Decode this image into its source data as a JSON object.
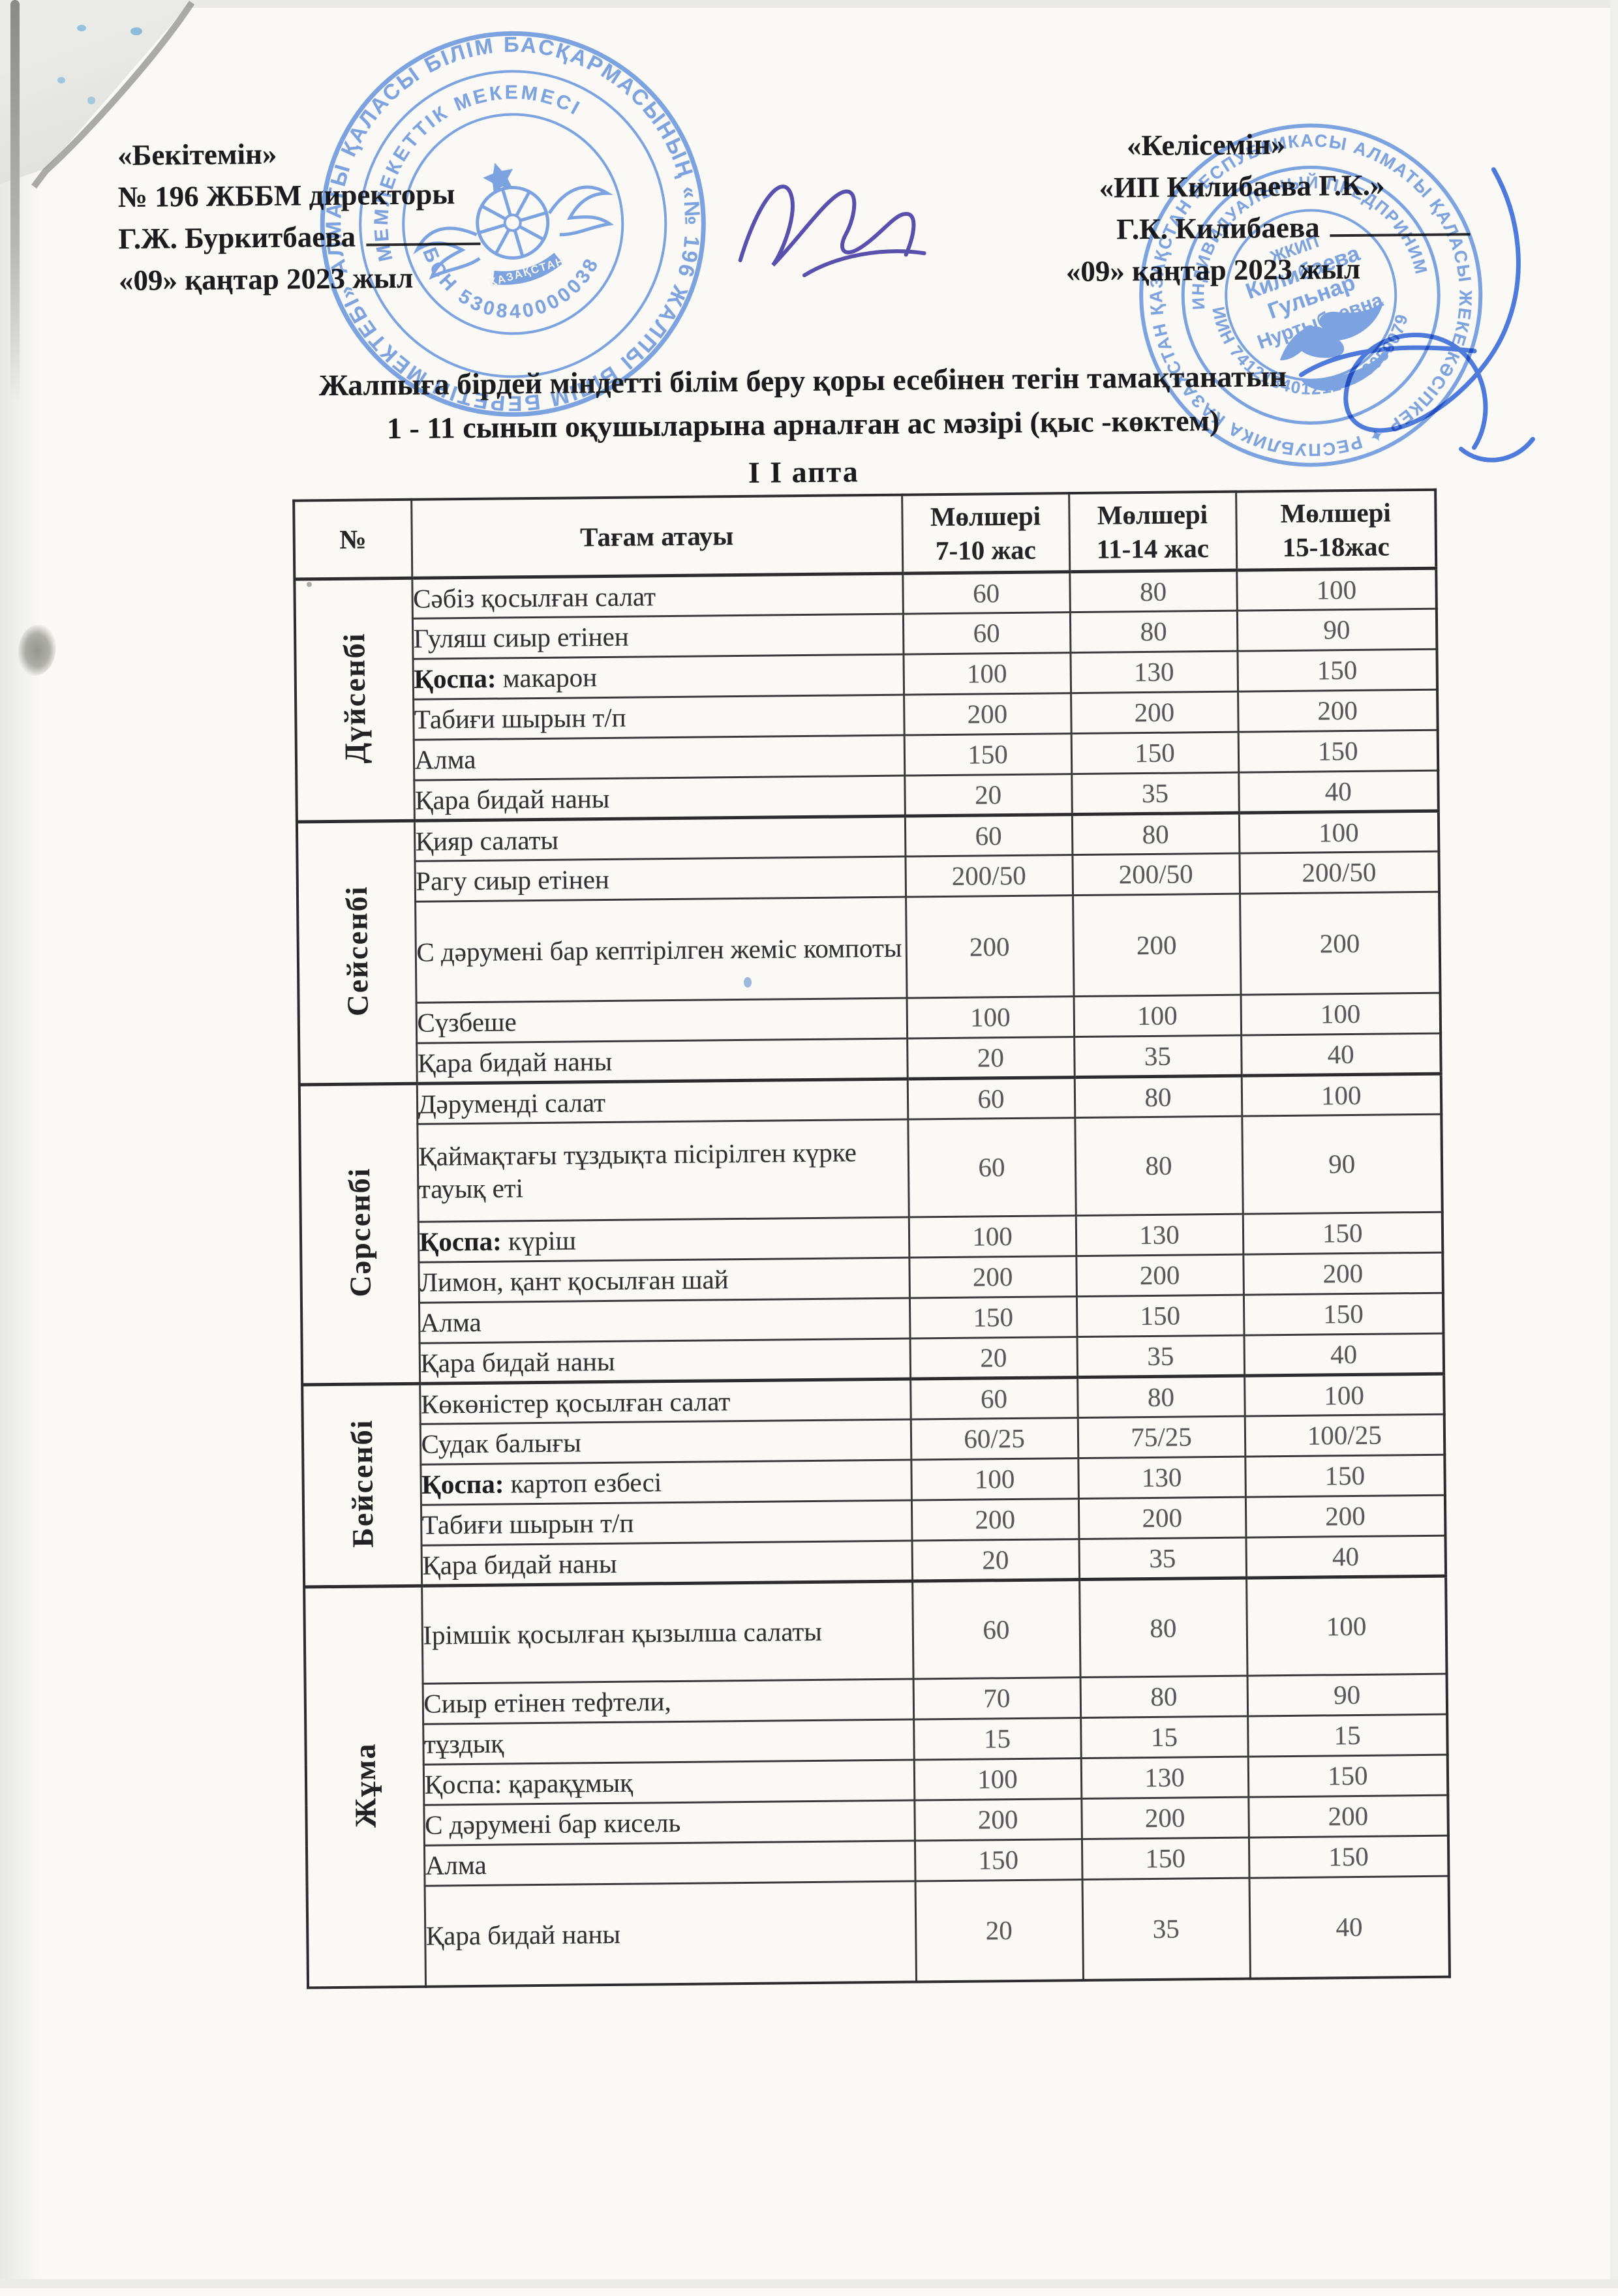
{
  "header_left": {
    "l1": "«Бекітемін»",
    "l2": "№ 196 ЖББМ  директоры",
    "l3_name": "Г.Ж. Буркитбаева",
    "l4": "«09» қаңтар 2023 жыл"
  },
  "header_right": {
    "l1": "«Келісемін»",
    "l2": "«ИП Килибаева Г.К.»",
    "l3_name": "Г.К. Килибаева",
    "l4": "«09» қаңтар  2023 жыл"
  },
  "title": {
    "line1": "Жалпыға бірдей міндетті білім беру қоры  есебінен тегін тамақтанатын",
    "line2": "1 - 11 сынып оқушыларына арналған ас мәзірі (қыс -көктем)",
    "line3": "I I апта"
  },
  "table": {
    "headers": {
      "num": "№",
      "dish": "Тағам атауы",
      "cols": [
        {
          "l1": "Мөлшері",
          "l2": "7-10 жас"
        },
        {
          "l1": "Мөлшері",
          "l2": "11-14 жас"
        },
        {
          "l1": "Мөлшері",
          "l2": "15-18жас"
        }
      ]
    },
    "days": [
      {
        "name": "Дүйсенбі",
        "rows": [
          {
            "dish": "Сәбіз қосылған салат",
            "v1": "60",
            "v2": "80",
            "v3": "100"
          },
          {
            "dish": "Гуляш сиыр етінен",
            "v1": "60",
            "v2": "80",
            "v3": "90"
          },
          {
            "bold": "Қоспа:",
            "dish": "макарон",
            "v1": "100",
            "v2": "130",
            "v3": "150"
          },
          {
            "dish": "Табиғи шырын т/п",
            "v1": "200",
            "v2": "200",
            "v3": "200"
          },
          {
            "dish": "Алма",
            "v1": "150",
            "v2": "150",
            "v3": "150"
          },
          {
            "dish": "Қара бидай наны",
            "v1": "20",
            "v2": "35",
            "v3": "40"
          }
        ]
      },
      {
        "name": "Сейсенбі",
        "rows": [
          {
            "dish": "Қияр салаты",
            "v1": "60",
            "v2": "80",
            "v3": "100"
          },
          {
            "dish": "Рагу сиыр етінен",
            "v1": "200/50",
            "v2": "200/50",
            "v3": "200/50"
          },
          {
            "dish": "С дәрумені бар кептірілген жеміс компоты",
            "v1": "200",
            "v2": "200",
            "v3": "200",
            "h": 155
          },
          {
            "dish": "Сүзбеше",
            "v1": "100",
            "v2": "100",
            "v3": "100"
          },
          {
            "dish": "Қара бидай наны",
            "v1": "20",
            "v2": "35",
            "v3": "40"
          }
        ]
      },
      {
        "name": "Сәрсенбі",
        "rows": [
          {
            "dish": "Дәруменді салат",
            "v1": "60",
            "v2": "80",
            "v3": "100"
          },
          {
            "dish": "Қаймақтағы тұздықта пісірілген күрке тауық еті",
            "v1": "60",
            "v2": "80",
            "v3": "90",
            "h": 150
          },
          {
            "bold": "Қоспа:",
            "dish": "күріш",
            "v1": "100",
            "v2": "130",
            "v3": "150"
          },
          {
            "dish": "Лимон, қант қосылған шай",
            "v1": "200",
            "v2": "200",
            "v3": "200"
          },
          {
            "dish": "Алма",
            "v1": "150",
            "v2": "150",
            "v3": "150"
          },
          {
            "dish": "Қара бидай наны",
            "v1": "20",
            "v2": "35",
            "v3": "40"
          }
        ]
      },
      {
        "name": "Бейсенбі",
        "rows": [
          {
            "dish": "Көкөністер қосылған салат",
            "v1": "60",
            "v2": "80",
            "v3": "100"
          },
          {
            "dish": "Судак балығы",
            "v1": "60/25",
            "v2": "75/25",
            "v3": "100/25"
          },
          {
            "bold": "Қоспа:",
            "dish": "картоп езбесі",
            "v1": "100",
            "v2": "130",
            "v3": "150"
          },
          {
            "dish": "Табиғи шырын т/п",
            "v1": "200",
            "v2": "200",
            "v3": "200"
          },
          {
            "dish": "Қара бидай наны",
            "v1": "20",
            "v2": "35",
            "v3": "40"
          }
        ]
      },
      {
        "name": "Жұма",
        "rows": [
          {
            "dish": "Ірімшік қосылған қызылша салаты",
            "v1": "60",
            "v2": "80",
            "v3": "100",
            "h": 150
          },
          {
            "dish": "Сиыр етінен тефтели,",
            "v1": "70",
            "v2": "80",
            "v3": "90"
          },
          {
            "dish": "тұздық",
            "v1": "15",
            "v2": "15",
            "v3": "15"
          },
          {
            "dish": "Қоспа: қарақұмық",
            "v1": "100",
            "v2": "130",
            "v3": "150"
          },
          {
            "dish": "С дәрумені бар кисель",
            "v1": "200",
            "v2": "200",
            "v3": "200"
          },
          {
            "dish": "Алма",
            "v1": "150",
            "v2": "150",
            "v3": "150"
          },
          {
            "dish": "Қара бидай наны",
            "v1": "20",
            "v2": "35",
            "v3": "40",
            "h": 155
          }
        ]
      }
    ]
  },
  "stamps": {
    "ink_color": "#6594db",
    "left": {
      "ring_outer": "АЛМАТЫ ҚАЛАСЫ БІЛІМ БАСҚАРМАСЫНЫҢ  «№ 196 ЖАЛПЫ БІЛІМ БЕРЕТІН МЕКТЕБІ» КОММУНАЛДЫҚ",
      "ring_top": "МЕМЛЕКЕТТІК МЕКЕМЕСІ",
      "ring_bottom": "БСН 530840000038",
      "center": "ҚАЗАҚСТАН"
    },
    "right": {
      "ring_outer": "ҚАЗАҚСТАН РЕСПУБЛИКАСЫ АЛМАТЫ ҚАЛАСЫ ЖЕКЕ КӘСІПКЕР ✦ РЕСПУБЛИКА КАЗАХСТАН ГОРОД АЛМАТЫ",
      "ring_top": "ИНДИВИДУАЛЬНЫЙ ПРЕДПРИНИМАТЕЛЬ",
      "ring_bottom": "ИИН 741218401212 ✦ 0059079",
      "center_l1": "ЖКИП",
      "center_l2": "Килибаева",
      "center_l3": "Гульнар",
      "center_l4": "Нуртыбаевна"
    }
  }
}
